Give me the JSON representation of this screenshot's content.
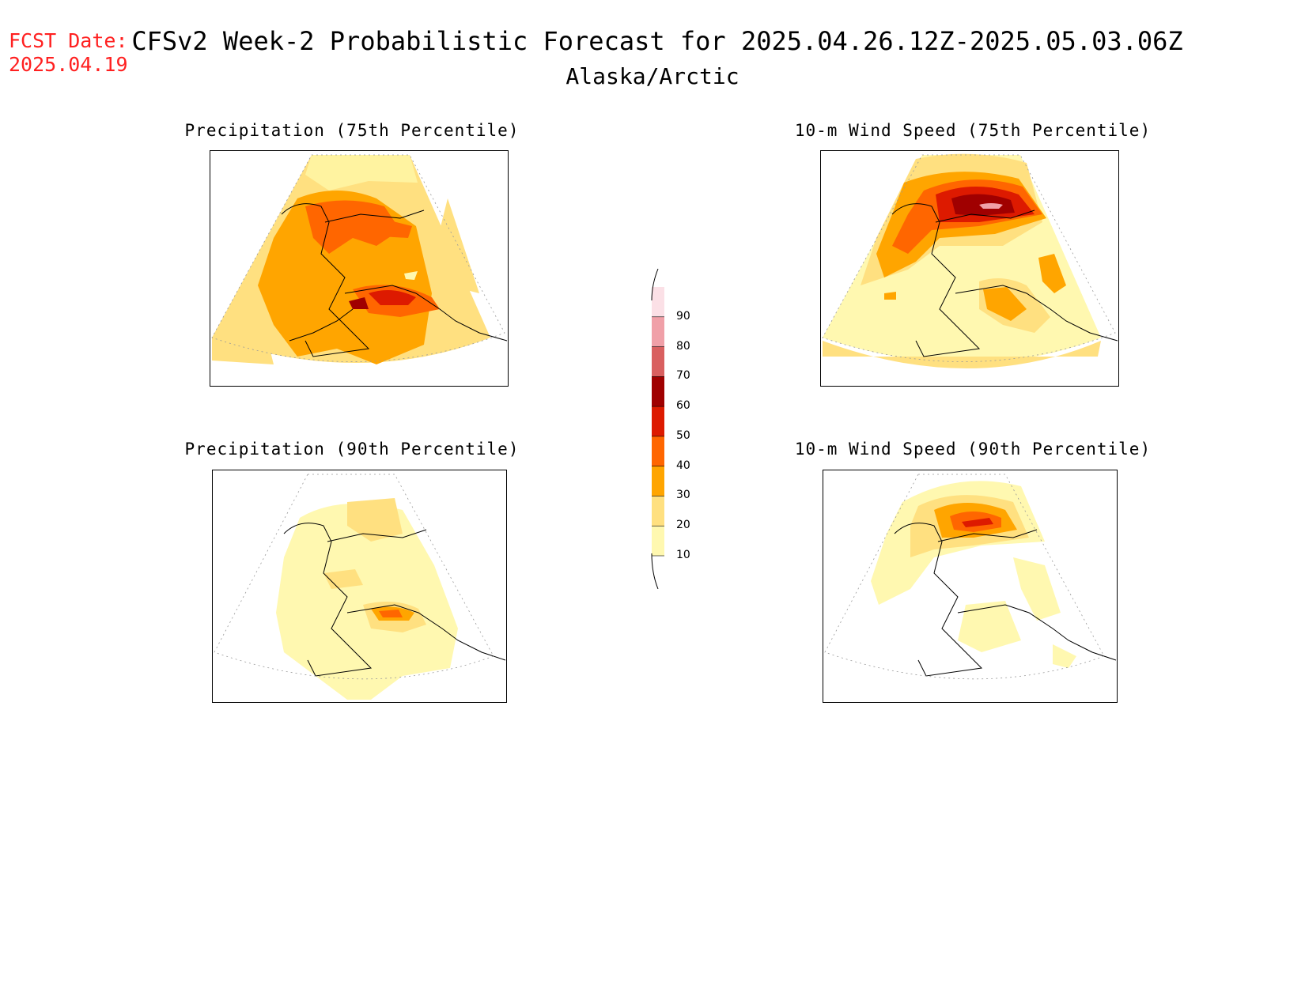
{
  "header": {
    "fcst_label": "FCST Date:",
    "fcst_date": "2025.04.19",
    "title": "CFSv2 Week-2 Probabilistic Forecast for 2025.04.26.12Z-2025.05.03.06Z",
    "region": "Alaska/Arctic"
  },
  "panels": [
    {
      "title": "Precipitation (75th Percentile)"
    },
    {
      "title": "10-m Wind Speed (75th Percentile)"
    },
    {
      "title": "Precipitation (90th Percentile)"
    },
    {
      "title": "10-m Wind Speed (90th Percentile)"
    }
  ],
  "colorbar": {
    "levels": [
      "10",
      "20",
      "30",
      "40",
      "50",
      "60",
      "70",
      "80",
      "90"
    ],
    "colors": [
      "#fff8b0",
      "#ffe080",
      "#ffa500",
      "#ff6600",
      "#dd1a00",
      "#a00000",
      "#d96060",
      "#f0a0a8",
      "#fbe0e6"
    ]
  }
}
